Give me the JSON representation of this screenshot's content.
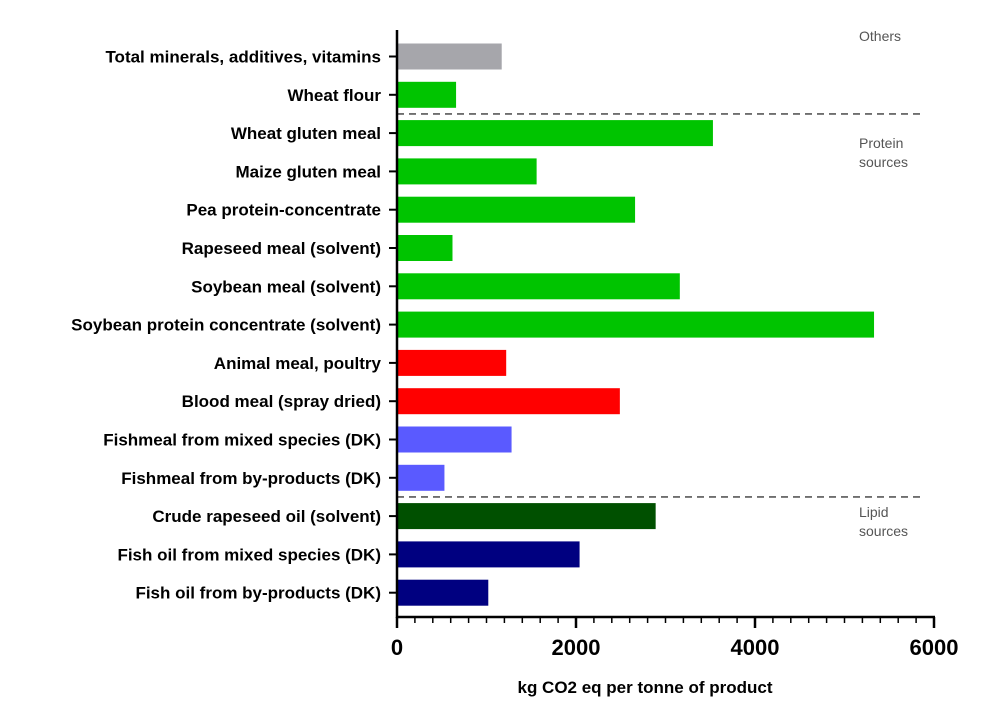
{
  "chart_data": {
    "type": "bar",
    "orientation": "horizontal",
    "xlabel": "kg CO2 eq per tonne of product",
    "ylabel": "",
    "title": "",
    "xlim": [
      0,
      6000
    ],
    "x_ticks": [
      0,
      2000,
      4000,
      6000
    ],
    "x_minor_step": 200,
    "grid": false,
    "categories": [
      "Total minerals, additives, vitamins",
      "Wheat flour",
      "Wheat gluten meal",
      "Maize gluten meal",
      "Pea protein-concentrate",
      "Rapeseed meal (solvent)",
      "Soybean meal (solvent)",
      "Soybean protein concentrate (solvent)",
      "Animal meal, poultry",
      "Blood meal (spray dried)",
      "Fishmeal from mixed species (DK)",
      "Fishmeal from by-products (DK)",
      "Crude rapeseed oil (solvent)",
      "Fish oil from mixed species (DK)",
      "Fish oil from by-products (DK)"
    ],
    "values": [
      1170,
      660,
      3530,
      1560,
      2660,
      620,
      3160,
      5330,
      1220,
      2490,
      1280,
      530,
      2890,
      2040,
      1020
    ],
    "colors": [
      "#a6a6ab",
      "#00c400",
      "#00c400",
      "#00c400",
      "#00c400",
      "#00c400",
      "#00c400",
      "#00c400",
      "#ff0000",
      "#ff0000",
      "#5a5aff",
      "#5a5aff",
      "#005000",
      "#000080",
      "#000080"
    ],
    "groups": [
      {
        "label_lines": [
          "Others"
        ]
      },
      {
        "label_lines": [
          "Protein",
          "sources"
        ]
      },
      {
        "label_lines": [
          "Lipid",
          "sources"
        ]
      }
    ],
    "group_dividers_after_index": [
      1,
      11
    ]
  }
}
